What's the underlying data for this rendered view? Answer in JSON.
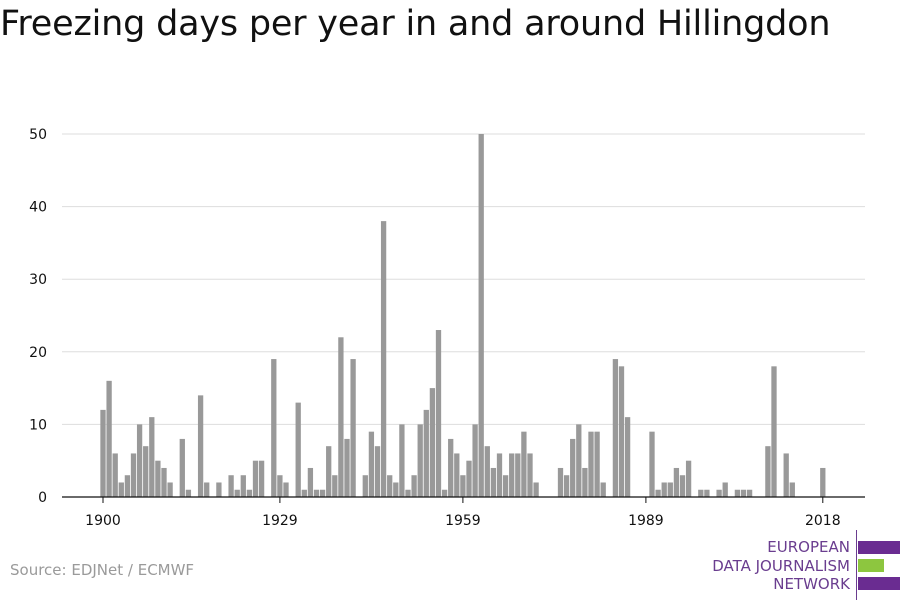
{
  "title": "Freezing days per year in and around Hillingdon",
  "source": "Source: EDJNet / ECMWF",
  "logo": {
    "line1": "EUROPEAN",
    "line2": "DATA JOURNALISM",
    "line3": "NETWORK",
    "colors": {
      "purple": "#6a2c91",
      "green": "#8dc63f",
      "text": "#6a3d8f"
    }
  },
  "chart_data": {
    "type": "bar",
    "title": "Freezing days per year in and around Hillingdon",
    "xlabel": "",
    "ylabel": "",
    "ylim": [
      0,
      50
    ],
    "yticks": [
      0,
      10,
      20,
      30,
      40,
      50
    ],
    "xticks": [
      1900,
      1929,
      1959,
      1989,
      2018
    ],
    "grid": true,
    "bar_color": "#999999",
    "x": [
      1900,
      1901,
      1902,
      1903,
      1904,
      1905,
      1906,
      1907,
      1908,
      1909,
      1910,
      1911,
      1912,
      1913,
      1914,
      1915,
      1916,
      1917,
      1918,
      1919,
      1920,
      1921,
      1922,
      1923,
      1924,
      1925,
      1926,
      1927,
      1928,
      1929,
      1930,
      1931,
      1932,
      1933,
      1934,
      1935,
      1936,
      1937,
      1938,
      1939,
      1940,
      1941,
      1942,
      1943,
      1944,
      1945,
      1946,
      1947,
      1948,
      1949,
      1950,
      1951,
      1952,
      1953,
      1954,
      1955,
      1956,
      1957,
      1958,
      1959,
      1960,
      1961,
      1962,
      1963,
      1964,
      1965,
      1966,
      1967,
      1968,
      1969,
      1970,
      1971,
      1972,
      1973,
      1974,
      1975,
      1976,
      1977,
      1978,
      1979,
      1980,
      1981,
      1982,
      1983,
      1984,
      1985,
      1986,
      1987,
      1988,
      1989,
      1990,
      1991,
      1992,
      1993,
      1994,
      1995,
      1996,
      1997,
      1998,
      1999,
      2000,
      2001,
      2002,
      2003,
      2004,
      2005,
      2006,
      2007,
      2008,
      2009,
      2010,
      2011,
      2012,
      2013,
      2014,
      2015,
      2016,
      2017,
      2018
    ],
    "values": [
      12,
      16,
      6,
      2,
      3,
      6,
      10,
      7,
      11,
      5,
      4,
      2,
      0,
      8,
      1,
      0,
      14,
      2,
      0,
      2,
      0,
      3,
      1,
      3,
      1,
      5,
      5,
      0,
      19,
      3,
      2,
      0,
      13,
      1,
      4,
      1,
      1,
      7,
      3,
      22,
      8,
      19,
      0,
      3,
      9,
      7,
      38,
      3,
      2,
      10,
      1,
      3,
      10,
      12,
      15,
      23,
      1,
      8,
      6,
      3,
      5,
      10,
      50,
      7,
      4,
      6,
      3,
      6,
      6,
      9,
      6,
      2,
      0,
      0,
      0,
      4,
      3,
      8,
      10,
      4,
      9,
      9,
      2,
      0,
      19,
      18,
      11,
      0,
      0,
      0,
      9,
      1,
      2,
      2,
      4,
      3,
      5,
      0,
      1,
      1,
      0,
      1,
      2,
      0,
      1,
      1,
      1,
      0,
      0,
      7,
      18,
      0,
      6,
      2,
      0,
      0,
      0,
      0,
      4
    ]
  }
}
